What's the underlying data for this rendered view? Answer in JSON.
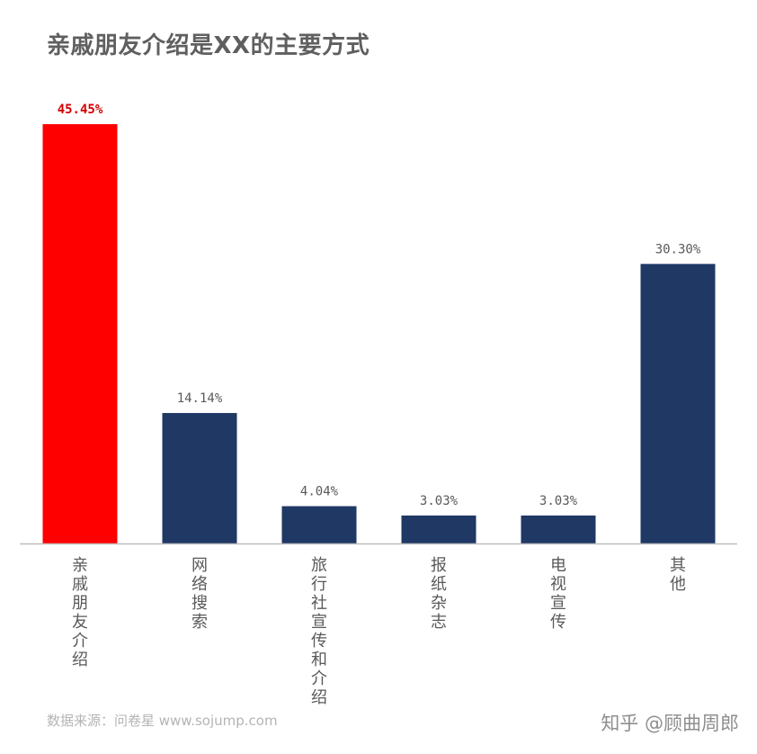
{
  "title": "亲戚朋友介绍是XX的主要方式",
  "source": "数据来源：问卷星 www.sojump.com",
  "watermark": "知乎 @顾曲周郎",
  "colors": {
    "highlight": "#ff0000",
    "bar": "#1f3864",
    "label": "#595959",
    "highlight_label": "#d40000",
    "axis": "#bfbfbf"
  },
  "chart_data": {
    "type": "bar",
    "title": "亲戚朋友介绍是XX的主要方式",
    "xlabel": "",
    "ylabel": "",
    "categories": [
      "亲戚朋友介绍",
      "网络搜索",
      "旅行社宣传和介绍",
      "报纸杂志",
      "电视宣传",
      "其他"
    ],
    "values": [
      45.45,
      14.14,
      4.04,
      3.03,
      3.03,
      30.3
    ],
    "data_labels": [
      "45.45%",
      "14.14%",
      "4.04%",
      "3.03%",
      "3.03%",
      "30.30%"
    ],
    "highlight_index": 0,
    "ylim": [
      0,
      45.45
    ],
    "grid": false,
    "legend": "none"
  }
}
